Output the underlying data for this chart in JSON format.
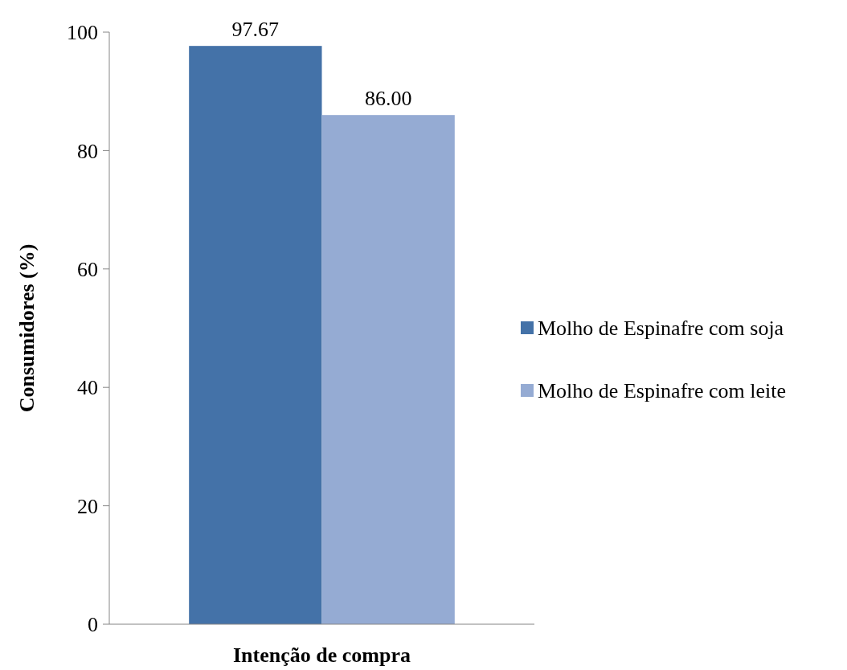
{
  "chart_data": {
    "type": "bar",
    "xlabel": "Intenção de compra",
    "ylabel": "Consumidores (%)",
    "categories": [
      null
    ],
    "series": [
      {
        "name": "Molho de Espinafre com soja",
        "color": "#4472a8",
        "values": [
          97.67
        ],
        "value_labels": [
          "97.67"
        ]
      },
      {
        "name": "Molho de Espinafre com leite",
        "color": "#95abd3",
        "values": [
          86.0
        ],
        "value_labels": [
          "86.00"
        ]
      }
    ],
    "ylim": [
      0,
      100
    ],
    "yticks": [
      0,
      20,
      40,
      60,
      80,
      100
    ],
    "legend": "right",
    "grid": false
  }
}
